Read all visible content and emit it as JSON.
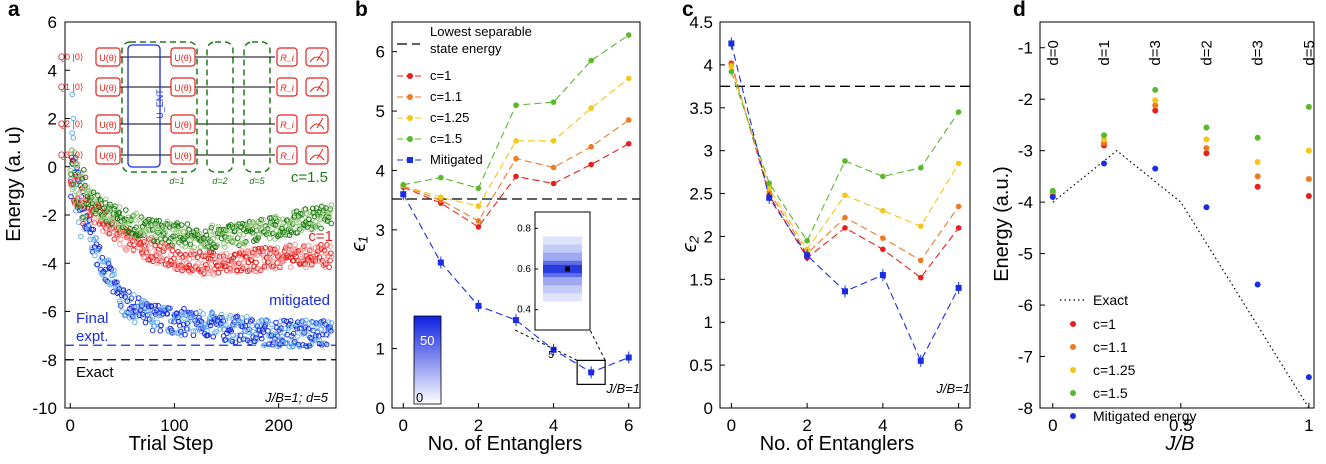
{
  "panels": {
    "a": {
      "letter": "a",
      "xlabel": "Trial Step",
      "ylabel": "Energy (a. u)",
      "xlim": [
        -5,
        255
      ],
      "ylim": [
        -10,
        6
      ],
      "xticks": [
        0,
        100,
        200
      ],
      "yticks": [
        6,
        4,
        2,
        0,
        -2,
        -4,
        -6,
        -8,
        -10
      ],
      "annotations": {
        "c15": "c=1.5",
        "c1": "c=1",
        "mitigated": "mitigated",
        "final1": "Final",
        "final2": "expt.",
        "exact": "Exact",
        "params": "J/B=1; d=5"
      },
      "hlines": {
        "final": -7.4,
        "exact": -8.0
      },
      "circuit": {
        "qubits": [
          "Q0 |0⟩",
          "Q1 |0⟩",
          "Q2 |0⟩",
          "Q3 |0⟩"
        ],
        "gate": "U(θ)",
        "ent": "U_ENT",
        "rot": "R_i",
        "layers": [
          "d=1",
          "d=2",
          "d=5"
        ]
      }
    },
    "b": {
      "letter": "b",
      "xlabel": "No. of Entanglers",
      "ylabel": "ϵ₁",
      "xlim": [
        -0.3,
        6.3
      ],
      "ylim": [
        0,
        6.5
      ],
      "xticks": [
        0,
        2,
        4,
        6
      ],
      "yticks": [
        0,
        1,
        2,
        3,
        4,
        5,
        6
      ],
      "legend": {
        "sep1": "Lowest separable",
        "sep2": "state energy",
        "items": [
          "c=1",
          "c=1.1",
          "c=1.25",
          "c=1.5",
          "Mitigated"
        ]
      },
      "hlines": {
        "separable_top": 6.18,
        "separable": 3.52
      },
      "note": "J/B=1",
      "inset": {
        "yticks": [
          0.4,
          0.6,
          0.8
        ],
        "xtick": "5",
        "value": 0.6
      },
      "colorbar": {
        "max_label": "50",
        "min_label": "0"
      }
    },
    "c": {
      "letter": "c",
      "xlabel": "No. of Entanglers",
      "ylabel": "ϵ₂",
      "xlim": [
        -0.3,
        6.3
      ],
      "ylim": [
        0,
        4.5
      ],
      "xticks": [
        0,
        2,
        4,
        6
      ],
      "yticks": [
        0,
        0.5,
        1,
        1.5,
        2,
        2.5,
        3,
        3.5,
        4,
        4.5
      ],
      "hline": 3.75,
      "note": "J/B=1"
    },
    "d": {
      "letter": "d",
      "xlabel": "J/B",
      "ylabel": "Energy (a.u.)",
      "xlim": [
        -0.05,
        1.02
      ],
      "ylim": [
        -8,
        -0.5
      ],
      "xticks": [
        0,
        0.5,
        1
      ],
      "yticks": [
        -1,
        -2,
        -3,
        -4,
        -5,
        -6,
        -7,
        -8
      ],
      "depth_labels": [
        "d=0",
        "d=1",
        "d=3",
        "d=2",
        "d=3",
        "d=5"
      ],
      "legend": [
        "Exact",
        "c=1",
        "c=1.1",
        "c=1.25",
        "c=1.5",
        "Mitigated energy"
      ]
    }
  },
  "colors": {
    "c1": "#e8201d",
    "c11": "#f07a22",
    "c125": "#f5c518",
    "c15": "#5ab82d",
    "mitigated": "#1a2de0",
    "c15_dark": "#1f7a16",
    "exact": "#000000"
  },
  "chart_data": [
    {
      "panel": "a",
      "type": "scatter",
      "title": "",
      "xlabel": "Trial Step",
      "ylabel": "Energy (a. u)",
      "xlim": [
        -5,
        255
      ],
      "ylim": [
        -10,
        6
      ],
      "series": [
        {
          "name": "c=1.5",
          "x": [
            0,
            10,
            25,
            50,
            75,
            100,
            125,
            150,
            175,
            200,
            225,
            250
          ],
          "y": [
            0.0,
            -1.0,
            -1.6,
            -2.2,
            -2.6,
            -2.8,
            -2.9,
            -2.9,
            -2.7,
            -2.5,
            -2.2,
            -2.0
          ]
        },
        {
          "name": "c=1",
          "x": [
            0,
            10,
            25,
            50,
            75,
            100,
            125,
            150,
            175,
            200,
            225,
            250
          ],
          "y": [
            0.0,
            -1.2,
            -2.0,
            -2.9,
            -3.4,
            -3.8,
            -4.0,
            -4.0,
            -3.9,
            -3.7,
            -3.7,
            -3.7
          ]
        },
        {
          "name": "mitigated",
          "x": [
            0,
            10,
            25,
            50,
            75,
            100,
            125,
            150,
            175,
            200,
            225,
            250
          ],
          "y": [
            0.0,
            -1.8,
            -3.5,
            -5.6,
            -6.2,
            -6.4,
            -6.5,
            -6.7,
            -6.8,
            -6.9,
            -6.9,
            -6.9
          ]
        }
      ]
    },
    {
      "panel": "b",
      "type": "line",
      "title": "",
      "xlabel": "No. of Entanglers",
      "ylabel": "ϵ₁",
      "x": [
        0,
        1,
        2,
        3,
        4,
        5,
        6
      ],
      "series": [
        {
          "name": "c=1",
          "values": [
            3.72,
            3.45,
            3.05,
            3.9,
            3.78,
            4.1,
            4.45
          ]
        },
        {
          "name": "c=1.1",
          "values": [
            3.74,
            3.5,
            3.15,
            4.2,
            4.05,
            4.4,
            4.85
          ]
        },
        {
          "name": "c=1.25",
          "values": [
            3.74,
            3.55,
            3.4,
            4.5,
            4.5,
            5.05,
            5.55
          ]
        },
        {
          "name": "c=1.5",
          "values": [
            3.76,
            3.88,
            3.7,
            5.1,
            5.15,
            5.85,
            6.28
          ]
        },
        {
          "name": "Mitigated",
          "values": [
            3.6,
            2.45,
            1.72,
            1.48,
            0.98,
            0.6,
            0.85
          ]
        }
      ]
    },
    {
      "panel": "c",
      "type": "line",
      "title": "",
      "xlabel": "No. of Entanglers",
      "ylabel": "ϵ₂",
      "x": [
        0,
        1,
        2,
        3,
        4,
        5,
        6
      ],
      "series": [
        {
          "name": "c=1",
          "values": [
            4.02,
            2.48,
            1.75,
            2.1,
            1.85,
            1.52,
            2.1
          ]
        },
        {
          "name": "c=1.1",
          "values": [
            4.0,
            2.52,
            1.8,
            2.22,
            1.98,
            1.72,
            2.35
          ]
        },
        {
          "name": "c=1.25",
          "values": [
            3.98,
            2.56,
            1.85,
            2.48,
            2.3,
            2.12,
            2.85
          ]
        },
        {
          "name": "c=1.5",
          "values": [
            3.92,
            2.62,
            1.95,
            2.88,
            2.7,
            2.8,
            3.45
          ]
        },
        {
          "name": "Mitigated",
          "values": [
            4.25,
            2.45,
            1.78,
            1.36,
            1.55,
            0.55,
            1.4
          ]
        }
      ]
    },
    {
      "panel": "d",
      "type": "scatter",
      "title": "",
      "xlabel": "J/B",
      "ylabel": "Energy (a.u.)",
      "x": [
        0,
        0.2,
        0.4,
        0.6,
        0.8,
        1.0
      ],
      "series": [
        {
          "name": "c=1",
          "values": [
            -3.85,
            -2.9,
            -2.22,
            -3.05,
            -3.7,
            -3.88
          ]
        },
        {
          "name": "c=1.1",
          "values": [
            -3.82,
            -2.85,
            -2.12,
            -2.95,
            -3.5,
            -3.55
          ]
        },
        {
          "name": "c=1.25",
          "values": [
            -3.8,
            -2.78,
            -2.02,
            -2.78,
            -3.22,
            -3.0
          ]
        },
        {
          "name": "c=1.5",
          "values": [
            -3.78,
            -2.7,
            -1.82,
            -2.55,
            -2.75,
            -2.15
          ]
        },
        {
          "name": "Mitigated energy",
          "values": [
            -3.9,
            -3.25,
            -3.35,
            -4.1,
            -5.6,
            -7.4
          ]
        },
        {
          "name": "Exact",
          "x": [
            0,
            0.25,
            0.5,
            1.0
          ],
          "values": [
            -4.0,
            -3.0,
            -4.0,
            -8.0
          ]
        }
      ]
    }
  ]
}
